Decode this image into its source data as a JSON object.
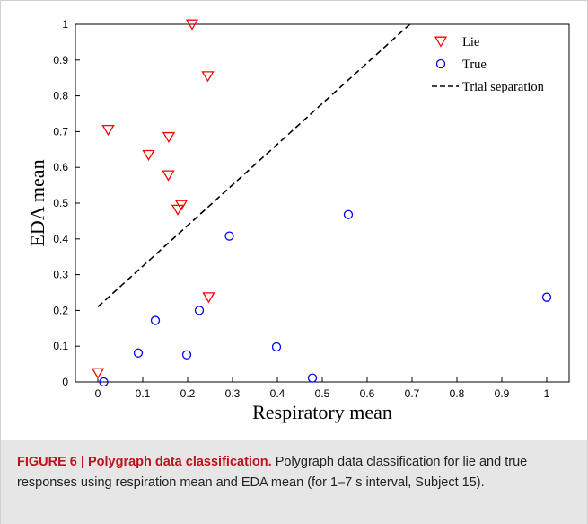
{
  "chart_data": {
    "type": "scatter",
    "xlabel": "Respiratory mean",
    "ylabel": "EDA mean",
    "xlim": [
      -0.05,
      1.05
    ],
    "ylim": [
      0,
      1
    ],
    "x_ticks": [
      "0",
      "0.1",
      "0.2",
      "0.3",
      "0.4",
      "0.5",
      "0.6",
      "0.7",
      "0.8",
      "0.9",
      "1"
    ],
    "y_ticks": [
      "0",
      "0.1",
      "0.2",
      "0.3",
      "0.4",
      "0.5",
      "0.6",
      "0.7",
      "0.8",
      "0.9",
      "1"
    ],
    "legend_position": "top-right",
    "series": [
      {
        "name": "Lie",
        "marker": "triangle-down",
        "color": "#ff0000",
        "points": [
          [
            0.21,
            1.0
          ],
          [
            0.245,
            0.855
          ],
          [
            0.023,
            0.705
          ],
          [
            0.158,
            0.685
          ],
          [
            0.113,
            0.635
          ],
          [
            0.157,
            0.578
          ],
          [
            0.186,
            0.495
          ],
          [
            0.178,
            0.482
          ],
          [
            0.247,
            0.237
          ],
          [
            0.0,
            0.025
          ]
        ]
      },
      {
        "name": "True",
        "marker": "circle",
        "color": "#0000ff",
        "points": [
          [
            0.558,
            0.468
          ],
          [
            0.293,
            0.408
          ],
          [
            1.0,
            0.237
          ],
          [
            0.128,
            0.172
          ],
          [
            0.226,
            0.2
          ],
          [
            0.09,
            0.081
          ],
          [
            0.198,
            0.076
          ],
          [
            0.398,
            0.098
          ],
          [
            0.478,
            0.011
          ],
          [
            0.013,
            0.0
          ]
        ]
      },
      {
        "name": "Trial separation",
        "type": "line",
        "style": "dashed",
        "color": "#000000",
        "points": [
          [
            0.0,
            0.21
          ],
          [
            0.695,
            1.0
          ]
        ]
      }
    ]
  },
  "caption": {
    "label": "FIGURE 6 |",
    "title": "Polygraph data classification.",
    "text": "Polygraph data classification for lie and true responses using respiration mean and EDA mean (for 1–7 s interval, Subject 15)."
  }
}
